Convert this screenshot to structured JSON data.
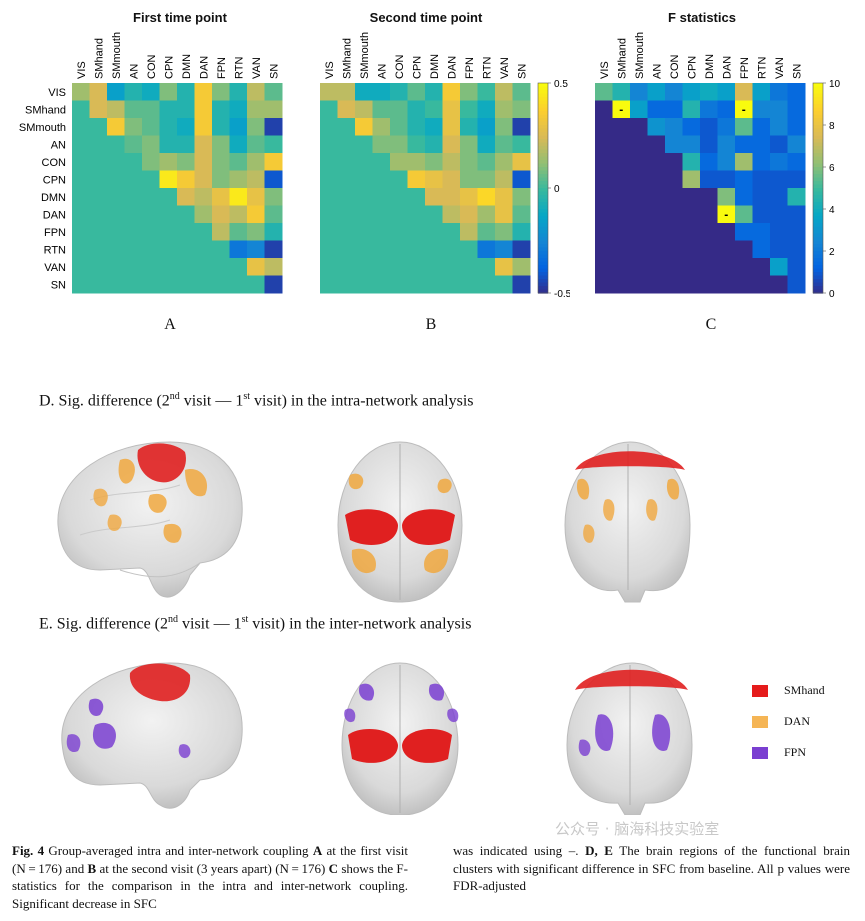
{
  "figure": {
    "networks": [
      "VIS",
      "SMhand",
      "SMmouth",
      "AN",
      "CON",
      "CPN",
      "DMN",
      "DAN",
      "FPN",
      "RTN",
      "VAN",
      "SN"
    ],
    "panels": [
      {
        "id": "A",
        "title": "First time point",
        "letter": "A"
      },
      {
        "id": "B",
        "title": "Second time point",
        "letter": "B"
      },
      {
        "id": "C",
        "title": "F statistics",
        "letter": "C"
      }
    ],
    "colorbar_AB": {
      "ticks": [
        "0.5",
        "0",
        "-0.5"
      ],
      "range": [
        -0.5,
        0.5
      ]
    },
    "colorbar_C": {
      "ticks": [
        "10",
        "8",
        "6",
        "4",
        "2",
        "0"
      ],
      "range": [
        0,
        10
      ]
    },
    "section_D": {
      "prefix": "D. Sig. difference (2",
      "sup1": "nd",
      "mid": " visit — 1",
      "sup2": "st",
      "suffix": " visit) in the intra-network analysis"
    },
    "section_E": {
      "prefix": "E. Sig. difference (2",
      "sup1": "nd",
      "mid": " visit — 1",
      "sup2": "st",
      "suffix": " visit) in the inter-network analysis"
    },
    "legend": [
      {
        "label": "SMhand",
        "color": "#e51b1b"
      },
      {
        "label": "DAN",
        "color": "#f5b555"
      },
      {
        "label": "FPN",
        "color": "#7a3fd1"
      }
    ],
    "caption_left": [
      {
        "b": "Fig. 4",
        "t": "  Group-averaged intra and inter-network coupling "
      },
      {
        "b": "A",
        "t": " at the first visit (N = 176) and "
      },
      {
        "b": "B",
        "t": " at the second visit (3 years apart) (N = 176) "
      },
      {
        "b": "C",
        "t": " shows the F-statistics for the comparison in the intra and inter-network coupling. Significant decrease in SFC"
      }
    ],
    "caption_right": [
      {
        "b": "",
        "t": "was indicated using –. "
      },
      {
        "b": "D, E",
        "t": " The brain regions of the functional brain clusters with significant difference in SFC from baseline. All p values were FDR-adjusted"
      }
    ],
    "watermark": "公众号 · 脑海科技实验室"
  },
  "chart_data": [
    {
      "type": "heatmap",
      "title": "First time point",
      "rows": [
        "VIS",
        "SMhand",
        "SMmouth",
        "AN",
        "CON",
        "CPN",
        "DMN",
        "DAN",
        "FPN",
        "RTN",
        "VAN",
        "SN"
      ],
      "cols": [
        "VIS",
        "SMhand",
        "SMmouth",
        "AN",
        "CON",
        "CPN",
        "DMN",
        "DAN",
        "FPN",
        "RTN",
        "VAN",
        "SN"
      ],
      "range": [
        -0.5,
        0.5
      ],
      "values": [
        [
          0.15,
          0.25,
          -0.15,
          -0.05,
          -0.1,
          0.1,
          -0.05,
          0.35,
          0.1,
          -0.05,
          0.2,
          0.05
        ],
        [
          0,
          0.25,
          0.2,
          0.05,
          0.05,
          -0.05,
          -0.05,
          0.35,
          -0.05,
          -0.1,
          0.15,
          0.15
        ],
        [
          0,
          0,
          0.35,
          0.1,
          0.05,
          -0.05,
          -0.1,
          0.35,
          -0.05,
          -0.15,
          0.1,
          -0.45
        ],
        [
          0,
          0,
          0,
          0.05,
          0.1,
          -0.05,
          -0.05,
          0.25,
          0.1,
          -0.1,
          0.05,
          0
        ],
        [
          0,
          0,
          0,
          0,
          0.1,
          0.15,
          0.1,
          0.25,
          0.1,
          0.05,
          0.15,
          0.35
        ],
        [
          0,
          0,
          0,
          0,
          0,
          0.45,
          0.35,
          0.25,
          0.1,
          0.15,
          0.2,
          -0.4
        ],
        [
          0,
          0,
          0,
          0,
          0,
          0,
          0.25,
          0.2,
          0.3,
          0.45,
          0.3,
          0.1
        ],
        [
          0,
          0,
          0,
          0,
          0,
          0,
          0,
          0.15,
          0.25,
          0.2,
          0.35,
          0.05
        ],
        [
          0,
          0,
          0,
          0,
          0,
          0,
          0,
          0,
          0.2,
          0.05,
          0.1,
          -0.05
        ],
        [
          0,
          0,
          0,
          0,
          0,
          0,
          0,
          0,
          0,
          -0.3,
          -0.25,
          -0.45
        ],
        [
          0,
          0,
          0,
          0,
          0,
          0,
          0,
          0,
          0,
          0,
          0.3,
          0.2
        ],
        [
          0,
          0,
          0,
          0,
          0,
          0,
          0,
          0,
          0,
          0,
          0,
          -0.45
        ]
      ]
    },
    {
      "type": "heatmap",
      "title": "Second time point",
      "rows": [
        "VIS",
        "SMhand",
        "SMmouth",
        "AN",
        "CON",
        "CPN",
        "DMN",
        "DAN",
        "FPN",
        "RTN",
        "VAN",
        "SN"
      ],
      "cols": [
        "VIS",
        "SMhand",
        "SMmouth",
        "AN",
        "CON",
        "CPN",
        "DMN",
        "DAN",
        "FPN",
        "RTN",
        "VAN",
        "SN"
      ],
      "range": [
        -0.5,
        0.5
      ],
      "values": [
        [
          0.2,
          0.2,
          -0.1,
          -0.1,
          -0.05,
          0.05,
          -0.05,
          0.35,
          0.1,
          0,
          0.2,
          0.05
        ],
        [
          0,
          0.25,
          0.2,
          0.05,
          0.05,
          -0.05,
          0,
          0.3,
          0,
          -0.1,
          0.15,
          0.1
        ],
        [
          0,
          0,
          0.35,
          0.15,
          0.05,
          -0.05,
          -0.1,
          0.3,
          -0.05,
          -0.15,
          0.1,
          -0.45
        ],
        [
          0,
          0,
          0,
          0.1,
          0.1,
          0,
          -0.05,
          0.25,
          0.1,
          -0.1,
          0.05,
          0
        ],
        [
          0,
          0,
          0,
          0,
          0.15,
          0.15,
          0.1,
          0.2,
          0.1,
          0.05,
          0.15,
          0.3
        ],
        [
          0,
          0,
          0,
          0,
          0,
          0.35,
          0.3,
          0.25,
          0.1,
          0.1,
          0.2,
          -0.4
        ],
        [
          0,
          0,
          0,
          0,
          0,
          0,
          0.25,
          0.25,
          0.3,
          0.4,
          0.3,
          0.1
        ],
        [
          0,
          0,
          0,
          0,
          0,
          0,
          0,
          0.2,
          0.25,
          0.15,
          0.3,
          0.05
        ],
        [
          0,
          0,
          0,
          0,
          0,
          0,
          0,
          0,
          0.2,
          0.05,
          0.1,
          -0.05
        ],
        [
          0,
          0,
          0,
          0,
          0,
          0,
          0,
          0,
          0,
          -0.3,
          -0.25,
          -0.45
        ],
        [
          0,
          0,
          0,
          0,
          0,
          0,
          0,
          0,
          0,
          0,
          0.3,
          0.15
        ],
        [
          0,
          0,
          0,
          0,
          0,
          0,
          0,
          0,
          0,
          0,
          0,
          -0.45
        ]
      ]
    },
    {
      "type": "heatmap",
      "title": "F statistics",
      "rows": [
        "VIS",
        "SMhand",
        "SMmouth",
        "AN",
        "CON",
        "CPN",
        "DMN",
        "DAN",
        "FPN",
        "RTN",
        "VAN",
        "SN"
      ],
      "cols": [
        "VIS",
        "SMhand",
        "SMmouth",
        "AN",
        "CON",
        "CPN",
        "DMN",
        "DAN",
        "FPN",
        "RTN",
        "VAN",
        "SN"
      ],
      "range": [
        0,
        10
      ],
      "marked": [
        [
          1,
          1
        ],
        [
          1,
          8
        ],
        [
          7,
          7
        ]
      ],
      "marker": "-",
      "values": [
        [
          5.5,
          4.5,
          2.5,
          3.5,
          2.5,
          3.5,
          4.0,
          3.5,
          7.5,
          3.5,
          2.0,
          1.5
        ],
        [
          0,
          10.0,
          3.5,
          1.5,
          1.5,
          4.5,
          2.0,
          1.5,
          10.0,
          2.5,
          2.5,
          1.5
        ],
        [
          0,
          0,
          0,
          3.0,
          2.5,
          1.5,
          1.0,
          2.0,
          5.5,
          1.5,
          2.5,
          1.5
        ],
        [
          0,
          0,
          0,
          0,
          2.5,
          2.5,
          1.0,
          2.5,
          1.5,
          1.5,
          1.0,
          2.5
        ],
        [
          0,
          0,
          0,
          0,
          0,
          4.5,
          1.5,
          2.5,
          6.5,
          1.5,
          2.0,
          1.5
        ],
        [
          0,
          0,
          0,
          0,
          0,
          6.5,
          1.0,
          1.0,
          1.5,
          1.0,
          1.0,
          1.0
        ],
        [
          0,
          0,
          0,
          0,
          0,
          0,
          0,
          6.0,
          1.5,
          1.0,
          1.0,
          4.5
        ],
        [
          0,
          0,
          0,
          0,
          0,
          0,
          0,
          10.0,
          5.5,
          1.0,
          1.0,
          1.0
        ],
        [
          0,
          0,
          0,
          0,
          0,
          0,
          0,
          0,
          1.5,
          1.5,
          1.0,
          1.0
        ],
        [
          0,
          0,
          0,
          0,
          0,
          0,
          0,
          0,
          0,
          1.5,
          1.0,
          1.0
        ],
        [
          0,
          0,
          0,
          0,
          0,
          0,
          0,
          0,
          0,
          0,
          3.5,
          1.0
        ],
        [
          0,
          0,
          0,
          0,
          0,
          0,
          0,
          0,
          0,
          0,
          0,
          1.0
        ]
      ]
    }
  ]
}
